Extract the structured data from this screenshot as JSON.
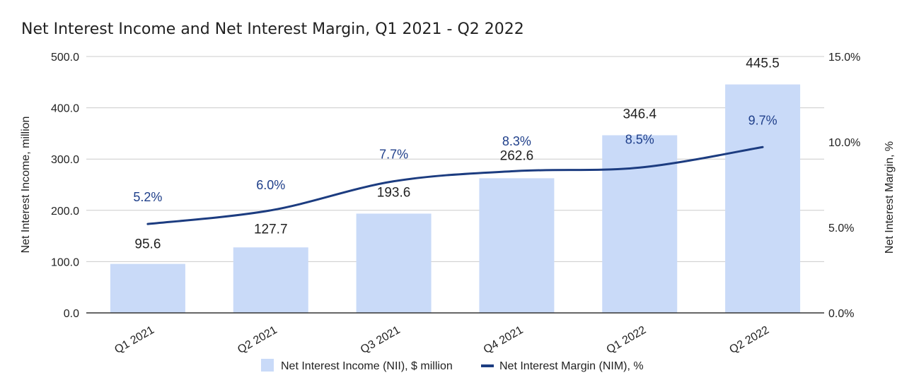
{
  "chart_data": {
    "type": "bar",
    "title": "Net Interest Income and Net Interest Margin, Q1 2021 - Q2 2022",
    "categories": [
      "Q1 2021",
      "Q2 2021",
      "Q3 2021",
      "Q4 2021",
      "Q1 2022",
      "Q2 2022"
    ],
    "series": [
      {
        "name": "Net Interest Income (NII), $ million",
        "type": "bar",
        "axis": "left",
        "values": [
          95.6,
          127.7,
          193.6,
          262.6,
          346.4,
          445.5
        ],
        "labels": [
          "95.6",
          "127.7",
          "193.6",
          "262.6",
          "346.4",
          "445.5"
        ],
        "color": "#c9daf8"
      },
      {
        "name": "Net Interest Margin (NIM), %",
        "type": "line",
        "axis": "right",
        "values": [
          5.2,
          6.0,
          7.7,
          8.3,
          8.5,
          9.7
        ],
        "labels": [
          "5.2%",
          "6.0%",
          "7.7%",
          "8.3%",
          "8.5%",
          "9.7%"
        ],
        "color": "#1c3c80"
      }
    ],
    "y_left": {
      "label": "Net Interest Income, million",
      "range": [
        0,
        500
      ],
      "ticks": [
        0,
        100,
        200,
        300,
        400,
        500
      ],
      "tick_labels": [
        "0.0",
        "100.0",
        "200.0",
        "300.0",
        "400.0",
        "500.0"
      ]
    },
    "y_right": {
      "label": "Net Interest Margin, %",
      "range": [
        0,
        15
      ],
      "ticks": [
        0,
        5,
        10,
        15
      ],
      "tick_labels": [
        "0.0%",
        "5.0%",
        "10.0%",
        "15.0%"
      ]
    },
    "grid": true,
    "legend_position": "bottom"
  }
}
